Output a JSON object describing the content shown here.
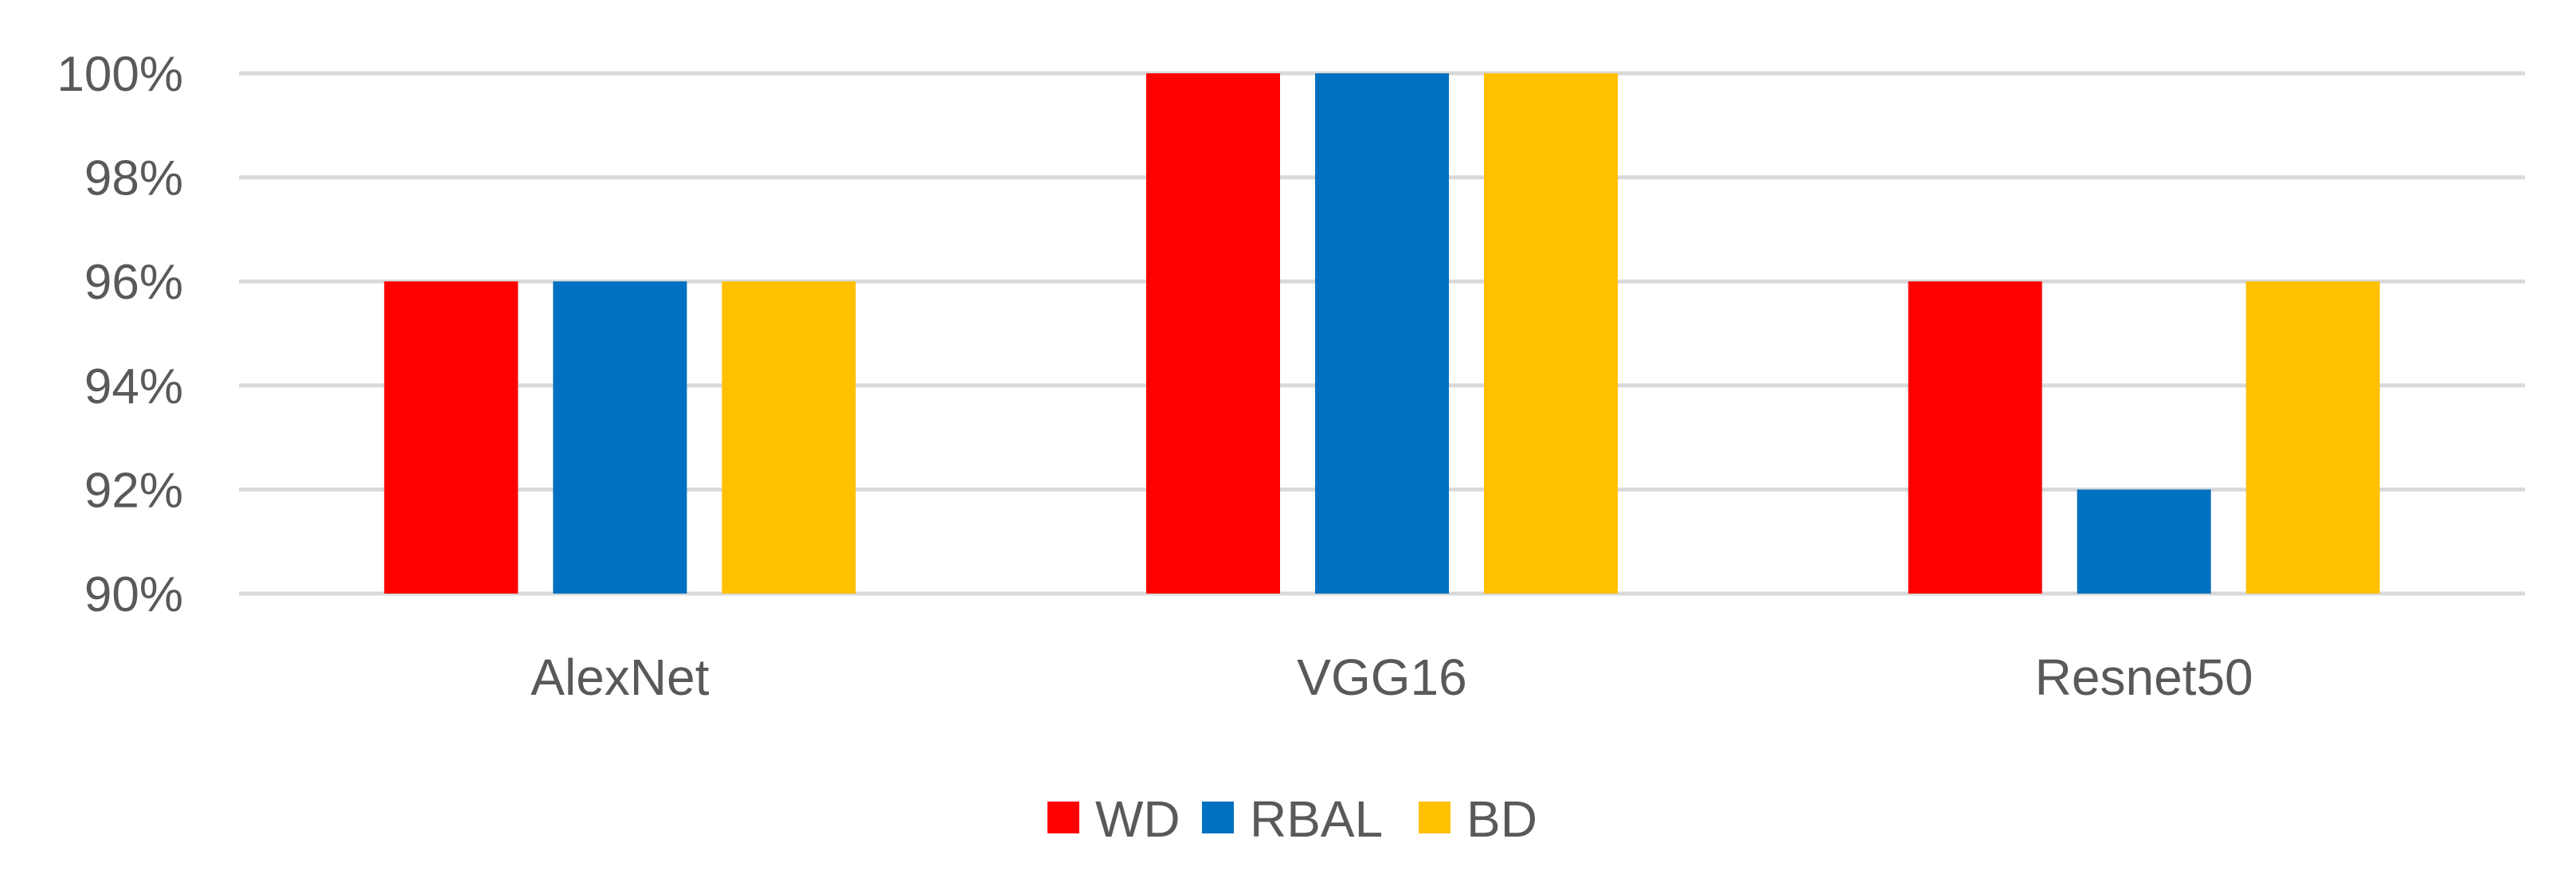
{
  "chart_data": {
    "type": "bar",
    "categories": [
      "AlexNet",
      "VGG16",
      "Resnet50"
    ],
    "series": [
      {
        "name": "WD",
        "color": "#ff0000",
        "values": [
          0.96,
          1.0,
          0.96
        ]
      },
      {
        "name": "RBAL",
        "color": "#0070c0",
        "values": [
          0.96,
          1.0,
          0.92
        ]
      },
      {
        "name": "BD",
        "color": "#ffc000",
        "values": [
          0.96,
          1.0,
          0.96
        ]
      }
    ],
    "ylim": [
      0.9,
      1.0
    ],
    "yticks": [
      0.9,
      0.92,
      0.94,
      0.96,
      0.98,
      1.0
    ],
    "ytick_labels": [
      "90%",
      "92%",
      "94%",
      "96%",
      "98%",
      "100%"
    ],
    "grid": true,
    "legend_position": "bottom"
  }
}
